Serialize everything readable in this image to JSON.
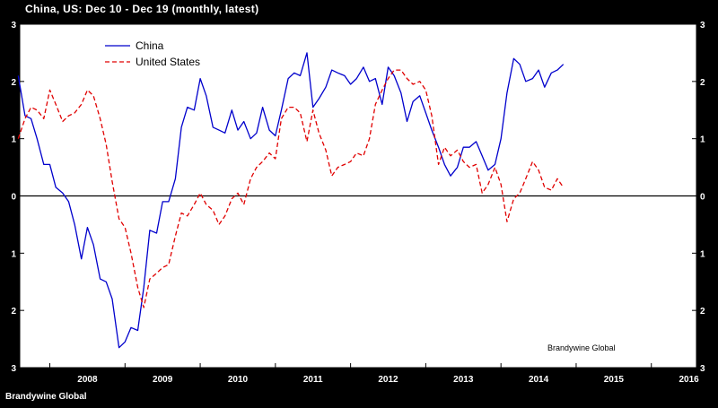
{
  "chart_data": {
    "type": "line",
    "title": "China, US: Dec 10 - Dec 19 (monthly, latest)",
    "source": "Brandywine Global",
    "credit": "Brandywine Global",
    "x_ticks": [
      "2008",
      "2009",
      "2010",
      "2011",
      "2012",
      "2013",
      "2014",
      "2015",
      "2016"
    ],
    "xlim": [
      2007.6,
      2016.6
    ],
    "ylim": [
      -3,
      3
    ],
    "y_ticks": [
      -3,
      -2,
      -1,
      0,
      1,
      2,
      3
    ],
    "grid": false,
    "legend_position": "top-left",
    "series": [
      {
        "name": "China",
        "color": "#0000cc",
        "dash": "solid",
        "points": [
          [
            2007.58,
            2.1
          ],
          [
            2007.67,
            1.4
          ],
          [
            2007.75,
            1.35
          ],
          [
            2007.83,
            1.0
          ],
          [
            2007.92,
            0.55
          ],
          [
            2008.0,
            0.55
          ],
          [
            2008.08,
            0.15
          ],
          [
            2008.17,
            0.05
          ],
          [
            2008.25,
            -0.1
          ],
          [
            2008.33,
            -0.5
          ],
          [
            2008.42,
            -1.1
          ],
          [
            2008.5,
            -0.55
          ],
          [
            2008.58,
            -0.85
          ],
          [
            2008.67,
            -1.45
          ],
          [
            2008.75,
            -1.5
          ],
          [
            2008.83,
            -1.8
          ],
          [
            2008.92,
            -2.65
          ],
          [
            2009.0,
            -2.55
          ],
          [
            2009.08,
            -2.3
          ],
          [
            2009.17,
            -2.35
          ],
          [
            2009.25,
            -1.6
          ],
          [
            2009.33,
            -0.6
          ],
          [
            2009.42,
            -0.65
          ],
          [
            2009.5,
            -0.1
          ],
          [
            2009.58,
            -0.1
          ],
          [
            2009.67,
            0.3
          ],
          [
            2009.75,
            1.2
          ],
          [
            2009.83,
            1.55
          ],
          [
            2009.92,
            1.5
          ],
          [
            2010.0,
            2.05
          ],
          [
            2010.08,
            1.75
          ],
          [
            2010.17,
            1.2
          ],
          [
            2010.25,
            1.15
          ],
          [
            2010.33,
            1.1
          ],
          [
            2010.42,
            1.5
          ],
          [
            2010.5,
            1.15
          ],
          [
            2010.58,
            1.3
          ],
          [
            2010.67,
            1.0
          ],
          [
            2010.75,
            1.1
          ],
          [
            2010.83,
            1.55
          ],
          [
            2010.92,
            1.15
          ],
          [
            2011.0,
            1.05
          ],
          [
            2011.08,
            1.5
          ],
          [
            2011.17,
            2.05
          ],
          [
            2011.25,
            2.15
          ],
          [
            2011.33,
            2.1
          ],
          [
            2011.42,
            2.5
          ],
          [
            2011.5,
            1.55
          ],
          [
            2011.58,
            1.7
          ],
          [
            2011.67,
            1.9
          ],
          [
            2011.75,
            2.2
          ],
          [
            2011.83,
            2.15
          ],
          [
            2011.92,
            2.1
          ],
          [
            2012.0,
            1.95
          ],
          [
            2012.08,
            2.05
          ],
          [
            2012.17,
            2.25
          ],
          [
            2012.25,
            2.0
          ],
          [
            2012.33,
            2.05
          ],
          [
            2012.42,
            1.6
          ],
          [
            2012.5,
            2.25
          ],
          [
            2012.58,
            2.1
          ],
          [
            2012.67,
            1.8
          ],
          [
            2012.75,
            1.3
          ],
          [
            2012.83,
            1.65
          ],
          [
            2012.92,
            1.75
          ],
          [
            2013.0,
            1.45
          ],
          [
            2013.08,
            1.15
          ],
          [
            2013.17,
            0.85
          ],
          [
            2013.25,
            0.55
          ],
          [
            2013.33,
            0.35
          ],
          [
            2013.42,
            0.5
          ],
          [
            2013.5,
            0.85
          ],
          [
            2013.58,
            0.85
          ],
          [
            2013.67,
            0.95
          ],
          [
            2013.75,
            0.7
          ],
          [
            2013.83,
            0.45
          ],
          [
            2013.92,
            0.55
          ],
          [
            2014.0,
            1.0
          ],
          [
            2014.08,
            1.8
          ],
          [
            2014.17,
            2.4
          ],
          [
            2014.25,
            2.3
          ],
          [
            2014.33,
            2.0
          ],
          [
            2014.42,
            2.05
          ],
          [
            2014.5,
            2.2
          ],
          [
            2014.58,
            1.9
          ],
          [
            2014.67,
            2.15
          ],
          [
            2014.75,
            2.2
          ],
          [
            2014.83,
            2.3
          ]
        ]
      },
      {
        "name": "United States",
        "color": "#e00000",
        "dash": "dashed",
        "points": [
          [
            2007.58,
            1.0
          ],
          [
            2007.67,
            1.35
          ],
          [
            2007.75,
            1.55
          ],
          [
            2007.83,
            1.5
          ],
          [
            2007.92,
            1.35
          ],
          [
            2008.0,
            1.85
          ],
          [
            2008.08,
            1.6
          ],
          [
            2008.17,
            1.3
          ],
          [
            2008.25,
            1.4
          ],
          [
            2008.33,
            1.45
          ],
          [
            2008.42,
            1.6
          ],
          [
            2008.5,
            1.85
          ],
          [
            2008.58,
            1.75
          ],
          [
            2008.67,
            1.35
          ],
          [
            2008.75,
            0.9
          ],
          [
            2008.83,
            0.25
          ],
          [
            2008.92,
            -0.4
          ],
          [
            2009.0,
            -0.55
          ],
          [
            2009.08,
            -1.0
          ],
          [
            2009.17,
            -1.6
          ],
          [
            2009.25,
            -1.95
          ],
          [
            2009.33,
            -1.45
          ],
          [
            2009.42,
            -1.35
          ],
          [
            2009.5,
            -1.25
          ],
          [
            2009.58,
            -1.2
          ],
          [
            2009.67,
            -0.7
          ],
          [
            2009.75,
            -0.3
          ],
          [
            2009.83,
            -0.35
          ],
          [
            2009.92,
            -0.15
          ],
          [
            2010.0,
            0.05
          ],
          [
            2010.08,
            -0.15
          ],
          [
            2010.17,
            -0.25
          ],
          [
            2010.25,
            -0.5
          ],
          [
            2010.33,
            -0.35
          ],
          [
            2010.42,
            -0.05
          ],
          [
            2010.5,
            0.05
          ],
          [
            2010.58,
            -0.15
          ],
          [
            2010.67,
            0.3
          ],
          [
            2010.75,
            0.5
          ],
          [
            2010.83,
            0.6
          ],
          [
            2010.92,
            0.75
          ],
          [
            2011.0,
            0.65
          ],
          [
            2011.08,
            1.35
          ],
          [
            2011.17,
            1.55
          ],
          [
            2011.25,
            1.55
          ],
          [
            2011.33,
            1.45
          ],
          [
            2011.42,
            0.95
          ],
          [
            2011.5,
            1.5
          ],
          [
            2011.58,
            1.1
          ],
          [
            2011.67,
            0.8
          ],
          [
            2011.75,
            0.35
          ],
          [
            2011.83,
            0.5
          ],
          [
            2011.92,
            0.55
          ],
          [
            2012.0,
            0.6
          ],
          [
            2012.08,
            0.75
          ],
          [
            2012.17,
            0.7
          ],
          [
            2012.25,
            1.0
          ],
          [
            2012.33,
            1.6
          ],
          [
            2012.42,
            1.85
          ],
          [
            2012.5,
            2.05
          ],
          [
            2012.58,
            2.2
          ],
          [
            2012.67,
            2.2
          ],
          [
            2012.75,
            2.05
          ],
          [
            2012.83,
            1.95
          ],
          [
            2012.92,
            2.0
          ],
          [
            2013.0,
            1.85
          ],
          [
            2013.08,
            1.4
          ],
          [
            2013.17,
            0.55
          ],
          [
            2013.25,
            0.85
          ],
          [
            2013.33,
            0.7
          ],
          [
            2013.42,
            0.8
          ],
          [
            2013.5,
            0.6
          ],
          [
            2013.58,
            0.5
          ],
          [
            2013.67,
            0.55
          ],
          [
            2013.75,
            0.05
          ],
          [
            2013.83,
            0.2
          ],
          [
            2013.92,
            0.5
          ],
          [
            2014.0,
            0.2
          ],
          [
            2014.08,
            -0.45
          ],
          [
            2014.17,
            -0.05
          ],
          [
            2014.25,
            0.05
          ],
          [
            2014.33,
            0.3
          ],
          [
            2014.42,
            0.6
          ],
          [
            2014.5,
            0.45
          ],
          [
            2014.58,
            0.15
          ],
          [
            2014.67,
            0.1
          ],
          [
            2014.75,
            0.3
          ],
          [
            2014.83,
            0.15
          ]
        ]
      }
    ]
  }
}
